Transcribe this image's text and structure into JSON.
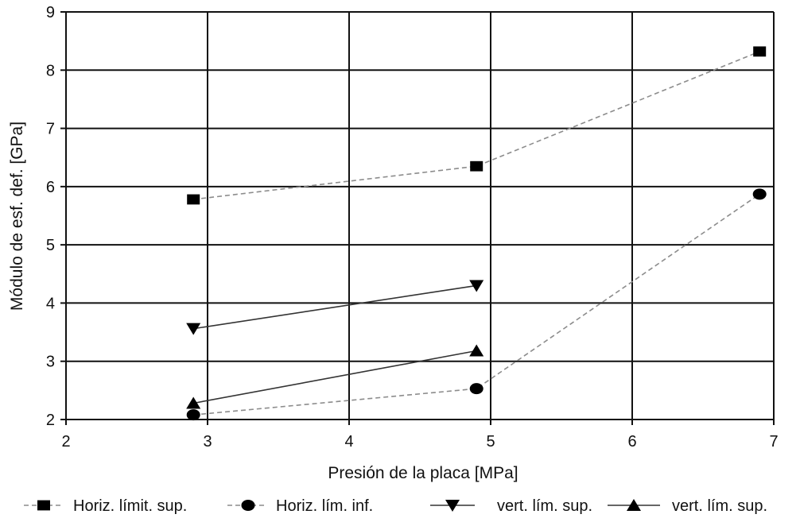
{
  "chart_data": {
    "type": "line",
    "title": "",
    "xlabel": "Presión de la placa [MPa]",
    "ylabel": "Módulo de esf. def. [GPa]",
    "xlim": [
      2,
      7
    ],
    "ylim": [
      2,
      9
    ],
    "xticks": [
      "2",
      "3",
      "4",
      "5",
      "6",
      "7"
    ],
    "yticks": [
      "2",
      "3",
      "4",
      "5",
      "6",
      "7",
      "8",
      "9"
    ],
    "grid": true,
    "legend_position": "bottom",
    "series": [
      {
        "name": "Horiz. límit. sup.",
        "marker": "square",
        "line_style": "dashed",
        "color": "#8c8c8c",
        "x": [
          2.9,
          4.9,
          6.9
        ],
        "y": [
          5.78,
          6.35,
          8.32
        ]
      },
      {
        "name": "Horiz. lím. inf.",
        "marker": "circle",
        "line_style": "dashed",
        "color": "#8c8c8c",
        "x": [
          2.9,
          4.9,
          6.9
        ],
        "y": [
          2.08,
          2.53,
          5.87
        ]
      },
      {
        "name": "vert. lím. sup.",
        "marker": "triangle-down",
        "line_style": "solid",
        "color": "#333333",
        "x": [
          2.9,
          4.9
        ],
        "y": [
          3.56,
          4.3
        ]
      },
      {
        "name": "vert. lím. sup.",
        "marker": "triangle-up",
        "line_style": "solid",
        "color": "#333333",
        "x": [
          2.9,
          4.9
        ],
        "y": [
          2.28,
          3.18
        ]
      }
    ]
  }
}
